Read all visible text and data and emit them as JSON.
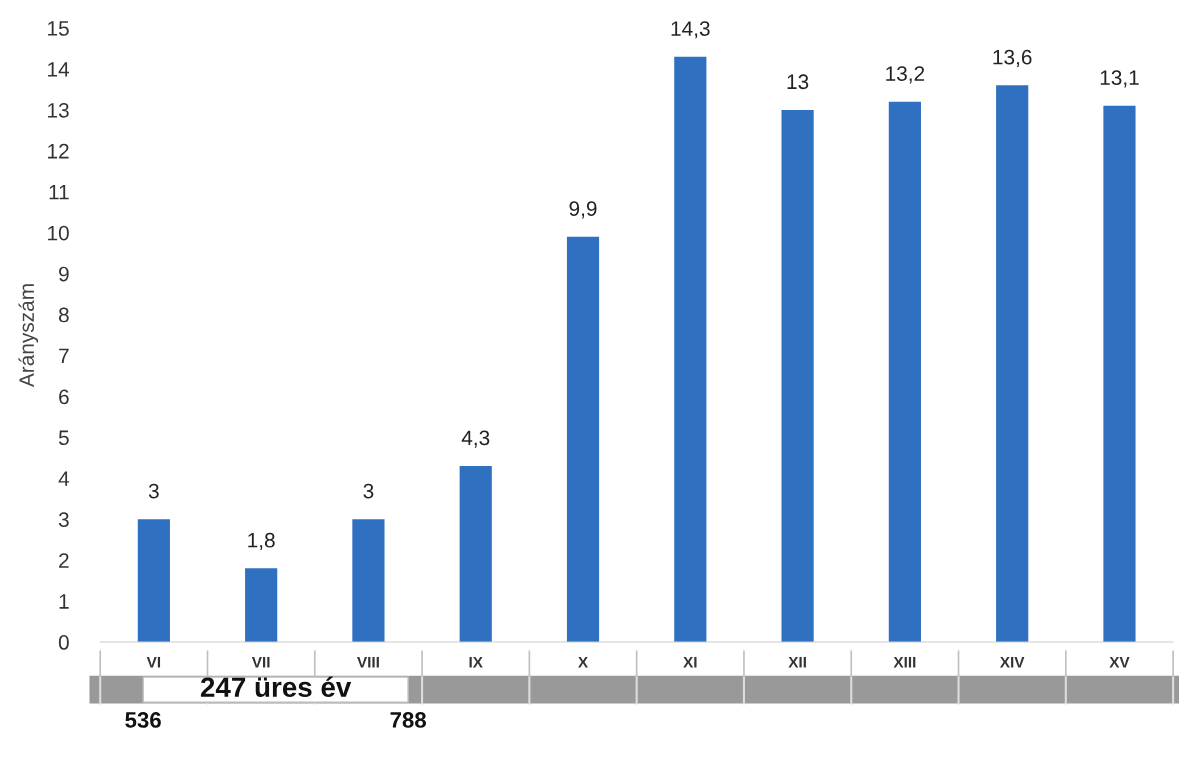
{
  "chart_data": {
    "type": "bar",
    "ylabel": "Arányszám",
    "categories": [
      "VI",
      "VII",
      "VIII",
      "IX",
      "X",
      "XI",
      "XII",
      "XIII",
      "XIV",
      "XV"
    ],
    "values": [
      3,
      1.8,
      3,
      4.3,
      9.9,
      14.3,
      13,
      13.2,
      13.6,
      13.1
    ],
    "value_labels": [
      "3",
      "1,8",
      "3",
      "4,3",
      "9,9",
      "14,3",
      "13",
      "13,2",
      "13,6",
      "13,1"
    ],
    "color": "#3070c0",
    "ylim": [
      0,
      15
    ],
    "yticks": [
      0,
      1,
      2,
      3,
      4,
      5,
      6,
      7,
      8,
      9,
      10,
      11,
      12,
      13,
      14,
      15
    ],
    "annotations": [
      "247 üres év",
      "536",
      "788"
    ]
  }
}
